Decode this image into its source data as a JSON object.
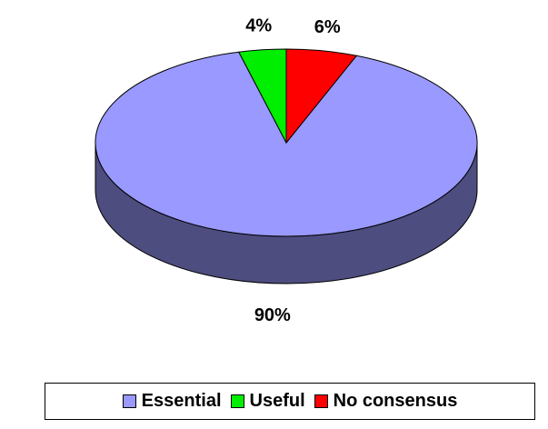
{
  "chart_data": {
    "type": "pie",
    "categories": [
      "Essential",
      "Useful",
      "No consensus"
    ],
    "values": [
      90,
      4,
      6
    ],
    "value_labels": [
      "90%",
      "4%",
      "6%"
    ],
    "colors": [
      "#9999ff",
      "#00ee00",
      "#ff0000"
    ],
    "legend": "bottom"
  }
}
